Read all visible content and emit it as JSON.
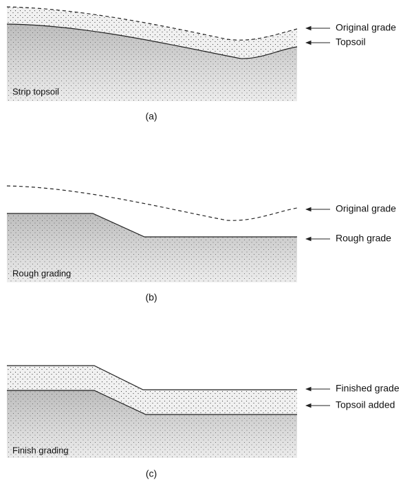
{
  "panels": [
    {
      "caption": "(a)",
      "label": "Strip topsoil",
      "callouts": [
        "Original grade",
        "Topsoil"
      ]
    },
    {
      "caption": "(b)",
      "label": "Rough grading",
      "callouts": [
        "Original grade",
        "Rough grade"
      ]
    },
    {
      "caption": "(c)",
      "label": "Finish grading",
      "callouts": [
        "Finished grade",
        "Topsoil added"
      ]
    }
  ]
}
